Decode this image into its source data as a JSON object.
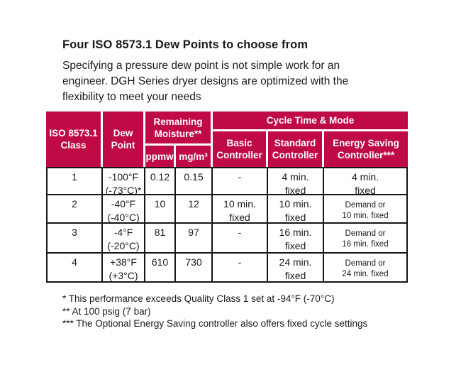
{
  "page": {
    "title": "Four ISO 8573.1 Dew Points to choose from",
    "intro": "Specifying a pressure dew point is not simple work for an\nengineer. DGH Series dryer designs are optimized with the\nflexibility to meet your needs"
  },
  "colors": {
    "header_bg": "#C00A46",
    "header_text": "#FFFFFF",
    "body_border": "#151515",
    "text": "#1A1A1A"
  },
  "table": {
    "header": {
      "class_label": "ISO 8573.1\nClass",
      "dew_point_label": "Dew\nPoint",
      "moisture_label": "Remaining\nMoisture**",
      "ppmw_label": "ppmw",
      "mgm3_label": "mg/m³",
      "cycle_label": "Cycle Time & Mode",
      "basic_label": "Basic\nController",
      "standard_label": "Standard\nController",
      "energy_label": "Energy Saving\nController***"
    },
    "rows": [
      {
        "class": "1",
        "dew_point": "-100°F\n(-73°C)*",
        "ppmw": "0.12",
        "mgm3": "0.15",
        "basic": "-",
        "standard": "4 min.\nfixed",
        "energy": "4 min.\nfixed"
      },
      {
        "class": "2",
        "dew_point": "-40°F\n(-40°C)",
        "ppmw": "10",
        "mgm3": "12",
        "basic": "10 min.\nfixed",
        "standard": "10 min.\nfixed",
        "energy": "Demand or\n10 min. fixed"
      },
      {
        "class": "3",
        "dew_point": "-4°F\n(-20°C)",
        "ppmw": "81",
        "mgm3": "97",
        "basic": "-",
        "standard": "16 min.\nfixed",
        "energy": "Demand or\n16 min. fixed"
      },
      {
        "class": "4",
        "dew_point": "+38°F\n(+3°C)",
        "ppmw": "610",
        "mgm3": "730",
        "basic": "-",
        "standard": "24 min.\nfixed",
        "energy": "Demand or\n24 min. fixed"
      }
    ]
  },
  "footnotes": [
    "* This performance exceeds Quality Class 1 set at -94°F (-70°C)",
    "** At 100 psig (7 bar)",
    "*** The Optional Energy Saving controller also offers fixed cycle settings"
  ]
}
